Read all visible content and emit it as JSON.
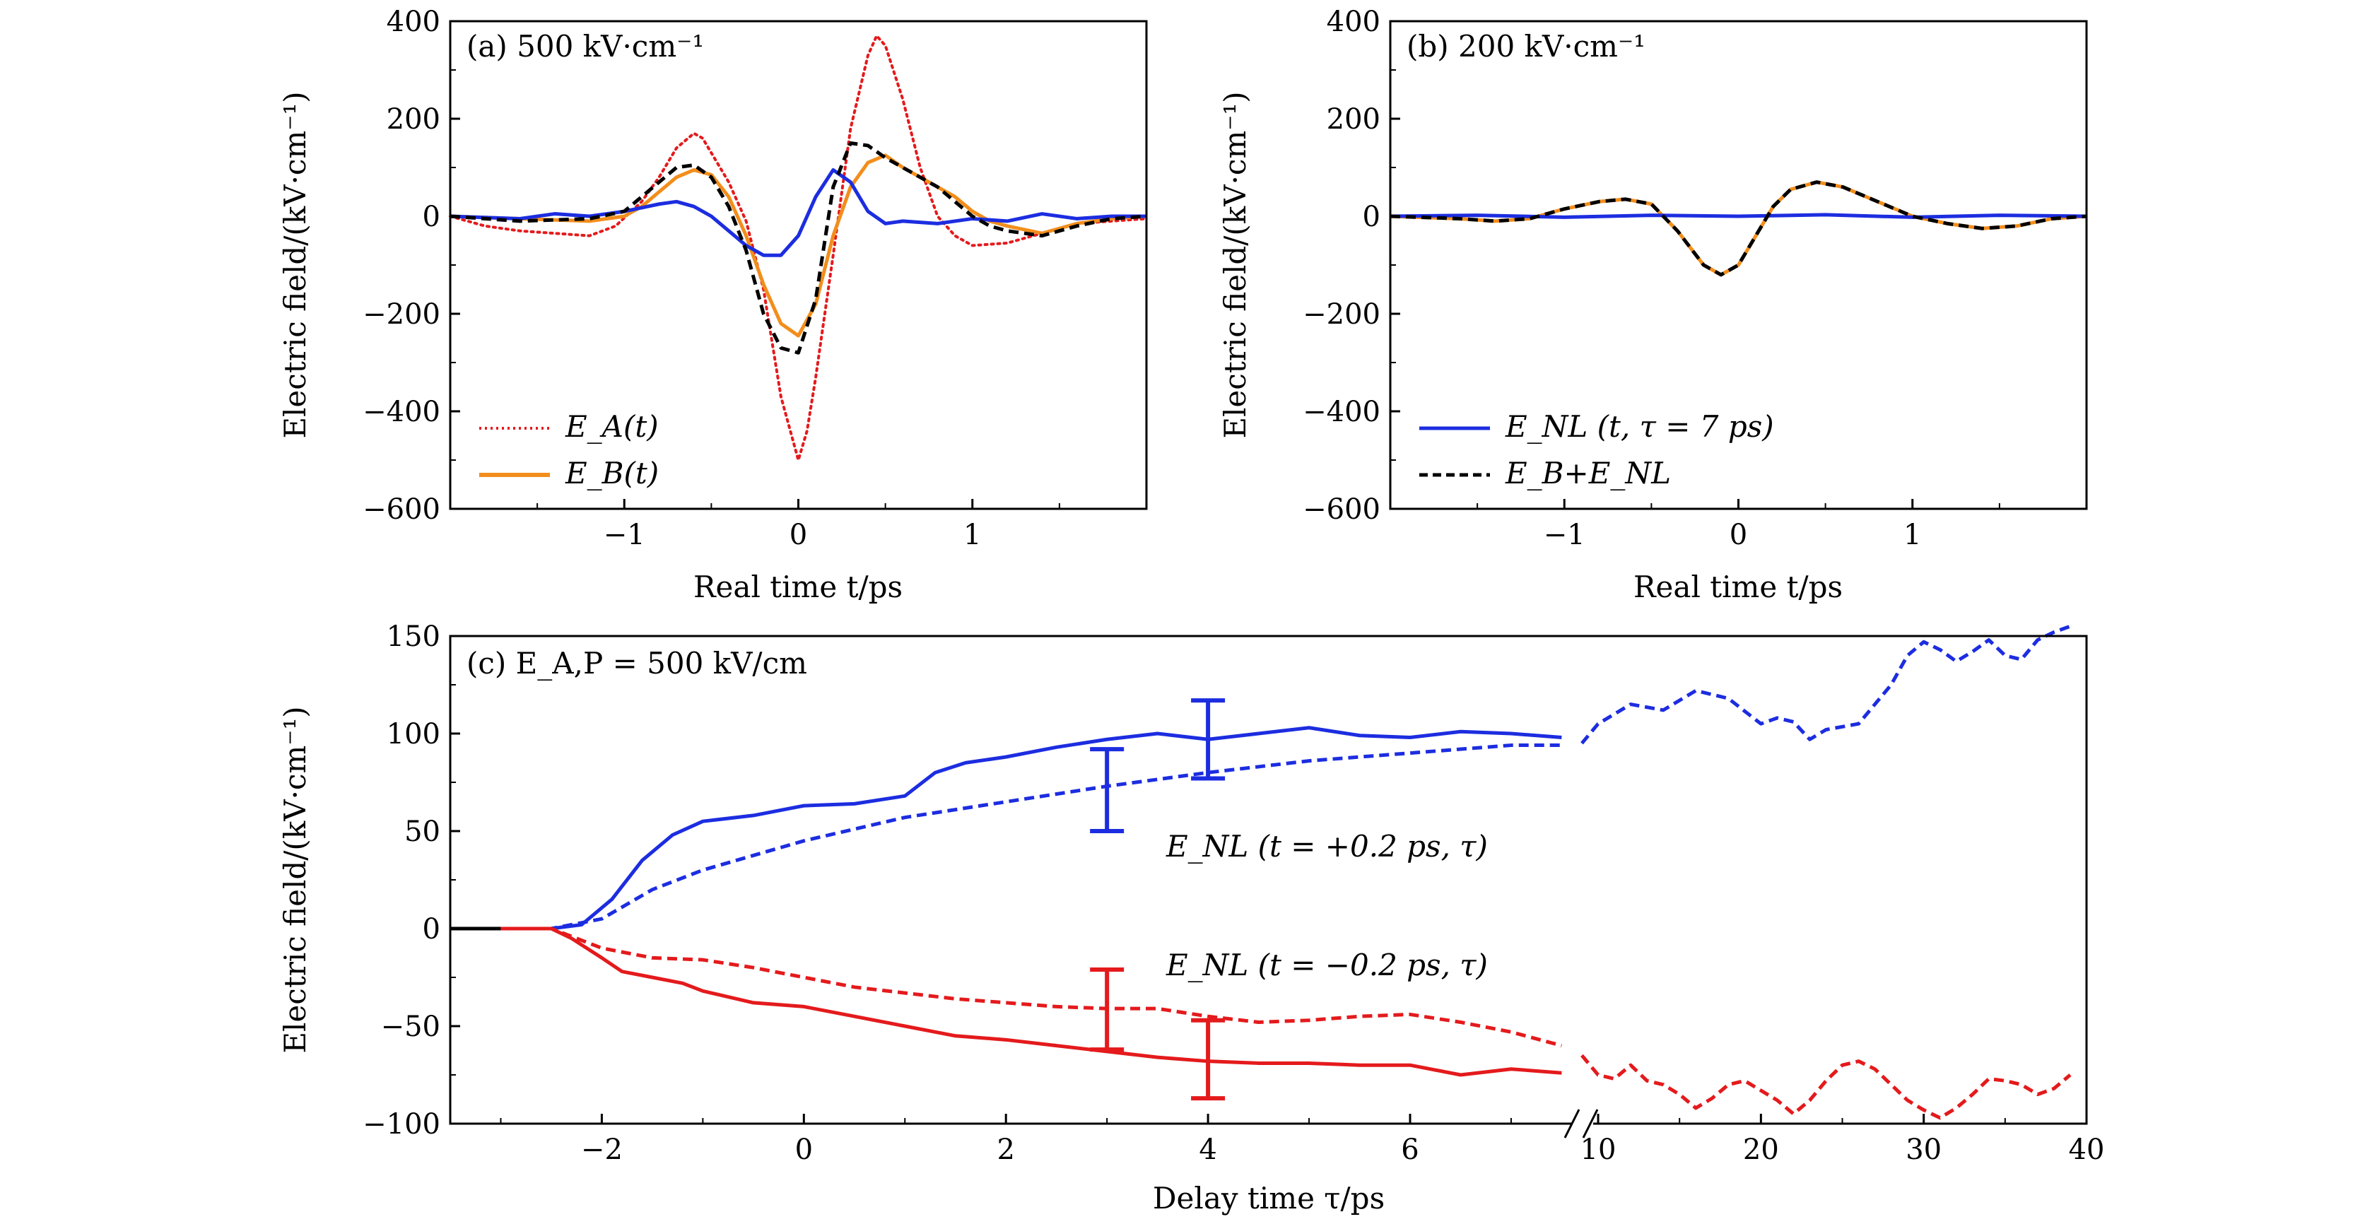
{
  "chart_data": [
    {
      "id": "a",
      "type": "line",
      "title": "(a) 500 kV·cm⁻¹",
      "xlabel": "Real time t/ps",
      "ylabel": "Electric field/(kV·cm⁻¹)",
      "xlim": [
        -2.0,
        2.0
      ],
      "ylim": [
        -600,
        400
      ],
      "xticks": [
        -1,
        0,
        1
      ],
      "xtick_labels": [
        "−1",
        "0",
        "1"
      ],
      "yticks": [
        400,
        200,
        0,
        -200,
        -400,
        -600
      ],
      "ytick_labels": [
        "400",
        "200",
        "0",
        "−200",
        "−400",
        "−600"
      ],
      "legend": [
        "E_A(t)",
        "E_B(t)"
      ],
      "legend_position": "bottom-left",
      "series": [
        {
          "name": "E_A(t)",
          "style": "dotted",
          "color": "#e41a1c",
          "x": [
            -2.0,
            -1.8,
            -1.6,
            -1.4,
            -1.2,
            -1.05,
            -0.9,
            -0.8,
            -0.7,
            -0.6,
            -0.55,
            -0.5,
            -0.4,
            -0.3,
            -0.2,
            -0.1,
            0.0,
            0.05,
            0.1,
            0.2,
            0.3,
            0.4,
            0.45,
            0.5,
            0.6,
            0.7,
            0.8,
            0.9,
            1.0,
            1.2,
            1.4,
            1.6,
            1.8,
            2.0
          ],
          "y": [
            0,
            -20,
            -30,
            -35,
            -40,
            -20,
            30,
            80,
            140,
            170,
            160,
            130,
            70,
            -10,
            -150,
            -370,
            -500,
            -440,
            -330,
            -80,
            180,
            330,
            370,
            350,
            240,
            100,
            0,
            -40,
            -60,
            -55,
            -35,
            -15,
            -10,
            -5
          ]
        },
        {
          "name": "E_B(t)",
          "style": "solid",
          "color": "#f28e1c",
          "x": [
            -2.0,
            -1.6,
            -1.2,
            -1.0,
            -0.9,
            -0.8,
            -0.7,
            -0.6,
            -0.5,
            -0.4,
            -0.3,
            -0.2,
            -0.1,
            0.0,
            0.1,
            0.2,
            0.3,
            0.4,
            0.5,
            0.6,
            0.7,
            0.8,
            0.9,
            1.0,
            1.1,
            1.2,
            1.4,
            1.6,
            1.8,
            2.0
          ],
          "y": [
            0,
            -5,
            -10,
            0,
            20,
            50,
            80,
            95,
            85,
            40,
            -40,
            -140,
            -220,
            -245,
            -180,
            -40,
            60,
            110,
            125,
            100,
            80,
            60,
            40,
            10,
            -10,
            -20,
            -35,
            -15,
            -5,
            0
          ]
        },
        {
          "name": "E_NL",
          "style": "solid",
          "color": "#1c2de0",
          "x": [
            -2.0,
            -1.6,
            -1.4,
            -1.2,
            -1.0,
            -0.8,
            -0.7,
            -0.6,
            -0.5,
            -0.4,
            -0.3,
            -0.2,
            -0.1,
            0.0,
            0.1,
            0.2,
            0.3,
            0.4,
            0.5,
            0.6,
            0.8,
            1.0,
            1.2,
            1.4,
            1.6,
            1.8,
            2.0
          ],
          "y": [
            0,
            -5,
            5,
            0,
            10,
            25,
            30,
            20,
            0,
            -30,
            -60,
            -80,
            -80,
            -40,
            40,
            95,
            70,
            10,
            -15,
            -10,
            -15,
            -5,
            -10,
            5,
            -5,
            0,
            0
          ]
        },
        {
          "name": "E_B+E_NL",
          "style": "dashed",
          "color": "#000000",
          "x": [
            -2.0,
            -1.6,
            -1.2,
            -1.0,
            -0.9,
            -0.8,
            -0.7,
            -0.6,
            -0.5,
            -0.4,
            -0.3,
            -0.2,
            -0.1,
            0.0,
            0.1,
            0.2,
            0.3,
            0.4,
            0.5,
            0.6,
            0.7,
            0.8,
            0.9,
            1.0,
            1.1,
            1.2,
            1.4,
            1.6,
            1.8,
            2.0
          ],
          "y": [
            0,
            -10,
            -5,
            10,
            40,
            70,
            100,
            105,
            80,
            20,
            -70,
            -200,
            -270,
            -280,
            -170,
            60,
            150,
            145,
            120,
            100,
            80,
            60,
            30,
            0,
            -20,
            -30,
            -40,
            -20,
            -5,
            0
          ]
        }
      ]
    },
    {
      "id": "b",
      "type": "line",
      "title": "(b) 200 kV·cm⁻¹",
      "xlabel": "Real time t/ps",
      "ylabel": "Electric field/(kV·cm⁻¹)",
      "xlim": [
        -2.0,
        2.0
      ],
      "ylim": [
        -600,
        400
      ],
      "xticks": [
        -1,
        0,
        1
      ],
      "xtick_labels": [
        "−1",
        "0",
        "1"
      ],
      "yticks": [
        400,
        200,
        0,
        -200,
        -400,
        -600
      ],
      "ytick_labels": [
        "400",
        "200",
        "0",
        "−200",
        "−400",
        "−600"
      ],
      "legend": [
        "E_NL (t, τ = 7 ps)",
        "E_B+E_NL"
      ],
      "legend_position": "bottom-left",
      "series": [
        {
          "name": "E_B",
          "style": "solid",
          "color": "#f28e1c",
          "x": [
            -2.0,
            -1.6,
            -1.4,
            -1.2,
            -1.0,
            -0.8,
            -0.65,
            -0.5,
            -0.35,
            -0.2,
            -0.1,
            0.0,
            0.1,
            0.2,
            0.3,
            0.45,
            0.6,
            0.8,
            1.0,
            1.2,
            1.4,
            1.6,
            1.8,
            2.0
          ],
          "y": [
            0,
            -5,
            -10,
            -5,
            15,
            30,
            35,
            25,
            -30,
            -100,
            -120,
            -100,
            -40,
            20,
            55,
            70,
            60,
            30,
            0,
            -15,
            -25,
            -20,
            -5,
            0
          ]
        },
        {
          "name": "E_NL (t, τ = 7 ps)",
          "style": "solid",
          "color": "#1c2de0",
          "x": [
            -2.0,
            -1.5,
            -1.0,
            -0.5,
            0.0,
            0.5,
            1.0,
            1.5,
            2.0
          ],
          "y": [
            0,
            2,
            -2,
            2,
            0,
            3,
            -2,
            2,
            0
          ]
        },
        {
          "name": "E_B+E_NL",
          "style": "dashed",
          "color": "#000000",
          "x": [
            -2.0,
            -1.6,
            -1.4,
            -1.2,
            -1.0,
            -0.8,
            -0.65,
            -0.5,
            -0.35,
            -0.2,
            -0.1,
            0.0,
            0.1,
            0.2,
            0.3,
            0.45,
            0.6,
            0.8,
            1.0,
            1.2,
            1.4,
            1.6,
            1.8,
            2.0
          ],
          "y": [
            0,
            -5,
            -10,
            -5,
            15,
            30,
            35,
            25,
            -30,
            -100,
            -120,
            -100,
            -40,
            20,
            55,
            70,
            60,
            30,
            0,
            -15,
            -25,
            -20,
            -5,
            0
          ]
        }
      ]
    },
    {
      "id": "c",
      "type": "line",
      "title": "(c) E_A,P = 500 kV/cm",
      "xlabel": "Delay time τ/ps",
      "ylabel": "Electric field/(kV·cm⁻¹)",
      "xlim_left": [
        -3.5,
        7.7
      ],
      "xlim_right": [
        9,
        40
      ],
      "ylim": [
        -100,
        150
      ],
      "xticks_left": [
        -2,
        0,
        2,
        4,
        6
      ],
      "xtick_labels_left": [
        "−2",
        "0",
        "2",
        "4",
        "6"
      ],
      "xticks_right": [
        10,
        20,
        30,
        40
      ],
      "xtick_labels_right": [
        "10",
        "20",
        "30",
        "40"
      ],
      "yticks": [
        150,
        100,
        50,
        0,
        -50,
        -100
      ],
      "ytick_labels": [
        "150",
        "100",
        "50",
        "0",
        "−50",
        "−100"
      ],
      "annotations": [
        {
          "text": "E_NL (t = +0.2 ps, τ)",
          "color": "#1c2de0"
        },
        {
          "text": "E_NL (t = −0.2 ps, τ)",
          "color": "#e41a1c"
        }
      ],
      "series": [
        {
          "name": "black baseline",
          "style": "solid",
          "color": "#000000",
          "x": [
            -3.5,
            -3.0
          ],
          "y": [
            0,
            0
          ]
        },
        {
          "name": "E_NL(t=+0.2ps) solid",
          "style": "solid",
          "color": "#1c2de0",
          "x": [
            -3.0,
            -2.5,
            -2.2,
            -1.9,
            -1.6,
            -1.3,
            -1.0,
            -0.5,
            0.0,
            0.5,
            1.0,
            1.3,
            1.6,
            2.0,
            2.5,
            3.0,
            3.5,
            4.0,
            4.5,
            5.0,
            5.5,
            6.0,
            6.5,
            7.0,
            7.5
          ],
          "y": [
            0,
            0,
            2,
            15,
            35,
            48,
            55,
            58,
            63,
            64,
            68,
            80,
            85,
            88,
            93,
            97,
            100,
            97,
            100,
            103,
            99,
            98,
            101,
            100,
            98
          ]
        },
        {
          "name": "E_NL(t=+0.2ps) dashed",
          "style": "dashed",
          "color": "#1c2de0",
          "x": [
            -3.0,
            -2.5,
            -2.0,
            -1.5,
            -1.0,
            0.0,
            1.0,
            2.0,
            3.0,
            4.0,
            5.0,
            6.0,
            7.0,
            7.5
          ],
          "y": [
            0,
            0,
            5,
            20,
            30,
            45,
            57,
            65,
            73,
            80,
            86,
            90,
            94,
            94
          ]
        },
        {
          "name": "E_NL(t=+0.2ps) dashed long",
          "style": "dashed",
          "color": "#1c2de0",
          "x": [
            9,
            10,
            12,
            14,
            16,
            18,
            20,
            21,
            22,
            23,
            24,
            26,
            28,
            29,
            30,
            31,
            32,
            33,
            34,
            35,
            36,
            37,
            38,
            39
          ],
          "y": [
            95,
            105,
            115,
            112,
            122,
            118,
            105,
            108,
            106,
            97,
            102,
            105,
            125,
            140,
            147,
            143,
            137,
            142,
            148,
            140,
            138,
            148,
            152,
            155
          ]
        },
        {
          "name": "E_NL(t=-0.2ps) solid",
          "style": "solid",
          "color": "#e41a1c",
          "x": [
            -3.0,
            -2.5,
            -2.3,
            -2.0,
            -1.8,
            -1.5,
            -1.2,
            -1.0,
            -0.5,
            0.0,
            0.5,
            1.0,
            1.5,
            2.0,
            2.5,
            3.0,
            3.5,
            4.0,
            4.5,
            5.0,
            5.5,
            6.0,
            6.5,
            7.0,
            7.5
          ],
          "y": [
            0,
            0,
            -5,
            -15,
            -22,
            -25,
            -28,
            -32,
            -38,
            -40,
            -45,
            -50,
            -55,
            -57,
            -60,
            -63,
            -66,
            -68,
            -69,
            -69,
            -70,
            -70,
            -75,
            -72,
            -74
          ]
        },
        {
          "name": "E_NL(t=-0.2ps) dashed",
          "style": "dashed",
          "color": "#e41a1c",
          "x": [
            -3.0,
            -2.5,
            -2.0,
            -1.5,
            -1.0,
            -0.5,
            0.0,
            0.5,
            1.0,
            1.5,
            2.0,
            2.5,
            3.0,
            3.5,
            4.0,
            4.5,
            5.0,
            5.5,
            6.0,
            6.5,
            7.0,
            7.5
          ],
          "y": [
            0,
            0,
            -10,
            -15,
            -16,
            -20,
            -25,
            -30,
            -33,
            -36,
            -38,
            -40,
            -41,
            -41,
            -45,
            -48,
            -47,
            -45,
            -44,
            -48,
            -53,
            -60
          ]
        },
        {
          "name": "E_NL(t=-0.2ps) dashed long",
          "style": "dashed",
          "color": "#e41a1c",
          "x": [
            9,
            10,
            11,
            12,
            13,
            14,
            15,
            16,
            17,
            18,
            19,
            20,
            21,
            22,
            23,
            24,
            25,
            26,
            27,
            28,
            29,
            30,
            31,
            32,
            33,
            34,
            35,
            36,
            37,
            38,
            39
          ],
          "y": [
            -65,
            -75,
            -77,
            -70,
            -78,
            -80,
            -85,
            -92,
            -87,
            -80,
            -78,
            -83,
            -88,
            -95,
            -88,
            -78,
            -70,
            -68,
            -72,
            -80,
            -88,
            -93,
            -97,
            -92,
            -85,
            -77,
            -78,
            -80,
            -85,
            -82,
            -75
          ]
        }
      ],
      "error_bars": [
        {
          "x": 3.0,
          "y_low": 50,
          "y_high": 92,
          "color": "#1c2de0"
        },
        {
          "x": 4.0,
          "y_low": 77,
          "y_high": 117,
          "color": "#1c2de0"
        },
        {
          "x": 3.0,
          "y_low": -62,
          "y_high": -21,
          "color": "#e41a1c"
        },
        {
          "x": 4.0,
          "y_low": -87,
          "y_high": -47,
          "color": "#e41a1c"
        }
      ]
    }
  ]
}
